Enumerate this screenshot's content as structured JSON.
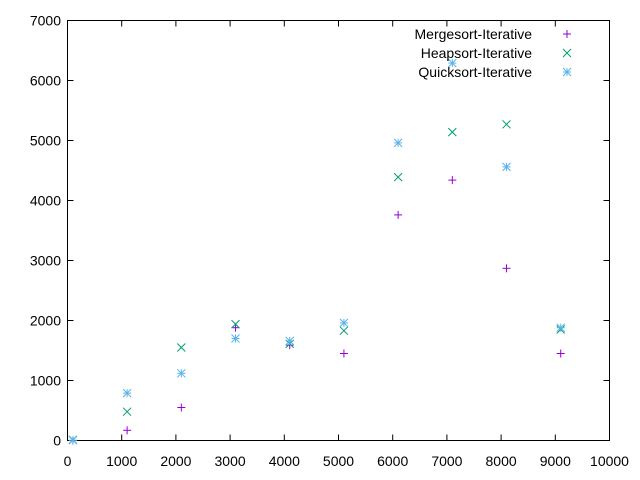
{
  "chart_data": {
    "type": "scatter",
    "title": "",
    "xlabel": "",
    "ylabel": "",
    "xlim": [
      0,
      10000
    ],
    "ylim": [
      0,
      7000
    ],
    "xticks": [
      0,
      1000,
      2000,
      3000,
      4000,
      5000,
      6000,
      7000,
      8000,
      9000,
      10000
    ],
    "yticks": [
      0,
      1000,
      2000,
      3000,
      4000,
      5000,
      6000,
      7000
    ],
    "grid": false,
    "legend_position": "top-right",
    "series": [
      {
        "name": "Mergesort-Iterative",
        "marker": "plus",
        "color": "#9400d3",
        "points": [
          [
            100,
            0
          ],
          [
            1100,
            170
          ],
          [
            2100,
            550
          ],
          [
            3100,
            1880
          ],
          [
            4100,
            1590
          ],
          [
            5100,
            1450
          ],
          [
            6100,
            3760
          ],
          [
            7100,
            4340
          ],
          [
            8100,
            2870
          ],
          [
            9100,
            1450
          ]
        ]
      },
      {
        "name": "Heapsort-Iterative",
        "marker": "cross",
        "color": "#009e73",
        "points": [
          [
            100,
            10
          ],
          [
            1100,
            480
          ],
          [
            2100,
            1550
          ],
          [
            3100,
            1940
          ],
          [
            4100,
            1610
          ],
          [
            5100,
            1830
          ],
          [
            6100,
            4390
          ],
          [
            7100,
            5140
          ],
          [
            8100,
            5270
          ],
          [
            9100,
            1850
          ]
        ]
      },
      {
        "name": "Quicksort-Iterative",
        "marker": "star",
        "color": "#56b4e9",
        "points": [
          [
            100,
            5
          ],
          [
            1100,
            790
          ],
          [
            2100,
            1120
          ],
          [
            3100,
            1700
          ],
          [
            4100,
            1660
          ],
          [
            5100,
            1960
          ],
          [
            6100,
            4960
          ],
          [
            7100,
            6290
          ],
          [
            8100,
            4560
          ],
          [
            9100,
            1880
          ]
        ]
      }
    ]
  }
}
